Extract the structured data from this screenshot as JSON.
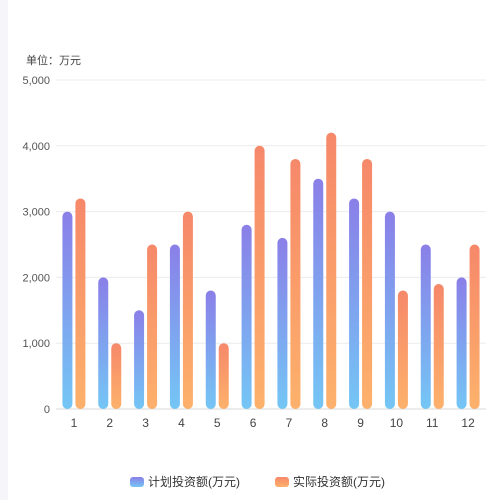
{
  "chart_data": {
    "type": "bar",
    "unit_label": "单位：万元",
    "categories": [
      "1",
      "2",
      "3",
      "4",
      "5",
      "6",
      "7",
      "8",
      "9",
      "10",
      "11",
      "12"
    ],
    "series": [
      {
        "name": "计划投资额(万元)",
        "values": [
          3000,
          2000,
          1500,
          2500,
          1800,
          2800,
          2600,
          3500,
          3200,
          3000,
          2500,
          2000
        ],
        "color_top": "#8a7fe8",
        "color_bottom": "#74c6f5"
      },
      {
        "name": "实际投资额(万元)",
        "values": [
          3200,
          1000,
          2500,
          3000,
          1000,
          4000,
          3800,
          4200,
          3800,
          1800,
          1900,
          2500
        ],
        "color_top": "#f6886a",
        "color_bottom": "#fdb16b"
      }
    ],
    "yticks": [
      "0",
      "1,000",
      "2,000",
      "3,000",
      "4,000",
      "5,000"
    ],
    "ylim": [
      0,
      5000
    ],
    "grid": true,
    "legend_position": "bottom-center"
  }
}
